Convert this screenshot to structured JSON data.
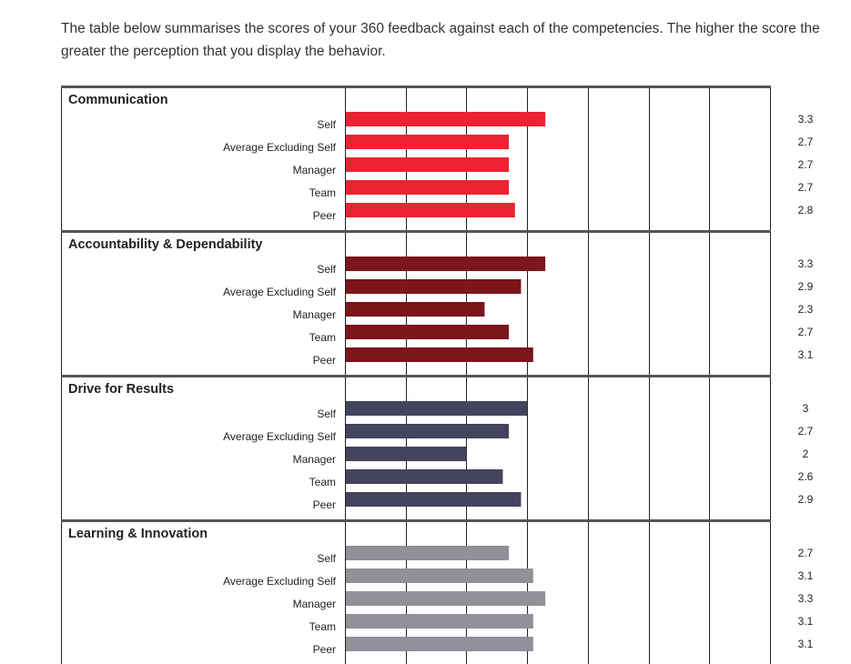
{
  "intro": "The table below summarises the scores of your 360 feedback against each of the competencies. The higher the score the greater the perception that you display the behavior.",
  "colors": {
    "Communication": "#ee2331",
    "Accountability & Dependability": "#7c161b",
    "Drive for Results": "#44445e",
    "Learning & Innovation": "#909098"
  },
  "chart_data": {
    "type": "bar",
    "orientation": "horizontal",
    "xlim": [
      0,
      7
    ],
    "grid": true,
    "categories": [
      "Self",
      "Average Excluding Self",
      "Manager",
      "Team",
      "Peer"
    ],
    "groups": [
      {
        "title": "Communication",
        "values": [
          3.3,
          2.7,
          2.7,
          2.7,
          2.8
        ],
        "labels": [
          "3.3",
          "2.7",
          "2.7",
          "2.7",
          "2.8"
        ]
      },
      {
        "title": "Accountability & Dependability",
        "values": [
          3.3,
          2.9,
          2.3,
          2.7,
          3.1
        ],
        "labels": [
          "3.3",
          "2.9",
          "2.3",
          "2.7",
          "3.1"
        ]
      },
      {
        "title": "Drive for Results",
        "values": [
          3,
          2.7,
          2,
          2.6,
          2.9
        ],
        "labels": [
          "3",
          "2.7",
          "2",
          "2.6",
          "2.9"
        ]
      },
      {
        "title": "Learning & Innovation",
        "values": [
          2.7,
          3.1,
          3.3,
          3.1,
          3.1
        ],
        "labels": [
          "2.7",
          "3.1",
          "3.3",
          "3.1",
          "3.1"
        ]
      }
    ]
  }
}
